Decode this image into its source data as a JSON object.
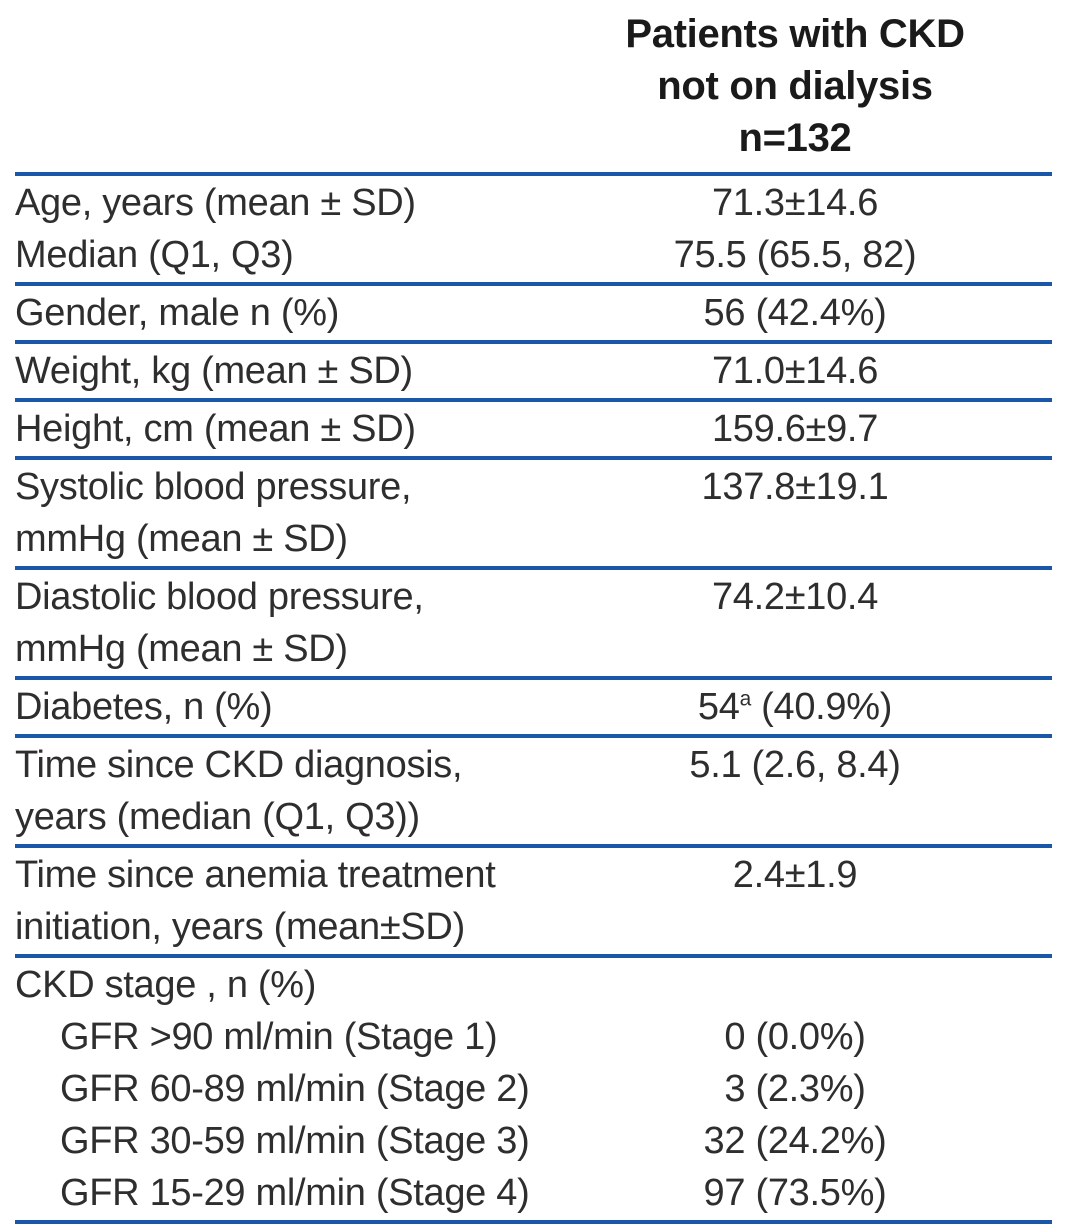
{
  "colors": {
    "rule": "#1b57a8",
    "text": "#2e2e2e",
    "header_text": "#1a1a1a",
    "background": "#ffffff"
  },
  "header": {
    "lines": [
      "Patients with CKD",
      "not on dialysis",
      "n=132"
    ]
  },
  "groups": [
    {
      "rows": [
        {
          "label": "Age, years (mean ± SD)",
          "value": "71.3±14.6"
        },
        {
          "label": "Median (Q1, Q3)",
          "value": "75.5 (65.5, 82)"
        }
      ]
    },
    {
      "rows": [
        {
          "label": "Gender, male n (%)",
          "value": "56 (42.4%)"
        }
      ]
    },
    {
      "rows": [
        {
          "label": "Weight, kg (mean ± SD)",
          "value": "71.0±14.6"
        }
      ]
    },
    {
      "rows": [
        {
          "label": "Height, cm (mean ± SD)",
          "value": "159.6±9.7"
        }
      ]
    },
    {
      "rows": [
        {
          "label": "Systolic blood pressure,",
          "value": "137.8±19.1"
        },
        {
          "label": "mmHg (mean ± SD)",
          "value": ""
        }
      ]
    },
    {
      "rows": [
        {
          "label": "Diastolic blood pressure,",
          "value": "74.2±10.4"
        },
        {
          "label": "mmHg (mean ± SD)",
          "value": ""
        }
      ]
    },
    {
      "rows": [
        {
          "label": "Diabetes, n (%)",
          "value": "54",
          "value_sup": "a",
          "value_rest": " (40.9%)"
        }
      ]
    },
    {
      "rows": [
        {
          "label": "Time since CKD diagnosis,",
          "value": "5.1 (2.6, 8.4)"
        },
        {
          "label": "years (median (Q1, Q3))",
          "value": ""
        }
      ]
    },
    {
      "rows": [
        {
          "label": "Time since anemia treatment",
          "value": "2.4±1.9"
        },
        {
          "label": "initiation, years (mean±SD)",
          "value": ""
        }
      ]
    },
    {
      "rows": [
        {
          "label": "CKD stage , n (%)",
          "value": ""
        },
        {
          "label": "GFR >90 ml/min (Stage 1)",
          "value": "0 (0.0%)",
          "indent": true
        },
        {
          "label": "GFR 60-89 ml/min (Stage 2)",
          "value": "3 (2.3%)",
          "indent": true
        },
        {
          "label": "GFR 30-59 ml/min (Stage 3)",
          "value": "32 (24.2%)",
          "indent": true
        },
        {
          "label": "GFR 15-29 ml/min (Stage 4)",
          "value": "97 (73.5%)",
          "indent": true
        }
      ]
    }
  ]
}
